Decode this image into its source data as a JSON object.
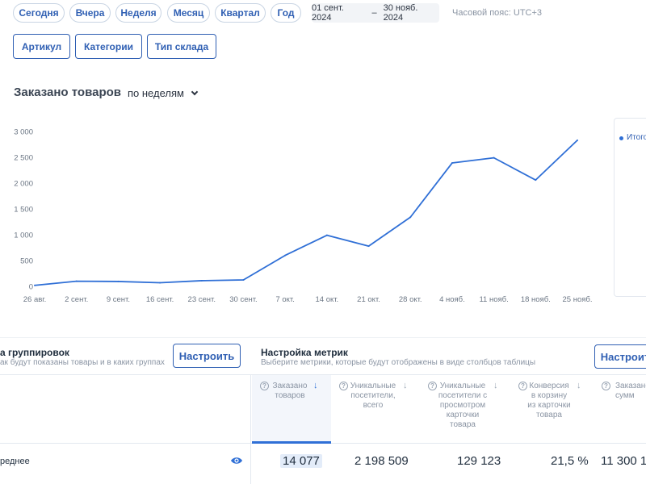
{
  "periods": [
    "Сегодня",
    "Вчера",
    "Неделя",
    "Месяц",
    "Квартал",
    "Год"
  ],
  "date_range": {
    "from": "01 сент. 2024",
    "dash": "–",
    "to": "30 нояб. 2024"
  },
  "timezone": "Часовой пояс: UTC+3",
  "filters": [
    "Артикул",
    "Категории",
    "Тип склада"
  ],
  "chart_header": {
    "title": "Заказано товаров",
    "period_select": "по неделям"
  },
  "legend": {
    "label": "Итого"
  },
  "chart_data": {
    "type": "line",
    "categories": [
      "26 авг.",
      "2 сент.",
      "9 сент.",
      "16 сент.",
      "23 сент.",
      "30 сент.",
      "7 окт.",
      "14 окт.",
      "21 окт.",
      "28 окт.",
      "4 нояб.",
      "11 нояб.",
      "18 нояб.",
      "25 нояб."
    ],
    "series": [
      {
        "name": "Итого",
        "values": [
          20,
          100,
          95,
          70,
          110,
          125,
          600,
          990,
          780,
          1340,
          2390,
          2490,
          2060,
          2830
        ]
      }
    ],
    "yticks": [
      "0",
      "500",
      "1 000",
      "1 500",
      "2 000",
      "2 500",
      "3 000"
    ],
    "ylim": [
      0,
      3000
    ],
    "grid": false,
    "legend_position": "right",
    "line_color": "#2f6fd6"
  },
  "grouping": {
    "title": "а группировок",
    "subtitle": "ак будут показаны товары и в каких группах",
    "button": "Настроить"
  },
  "metrics": {
    "title": "Настройка метрик",
    "subtitle": "Выберите метрики, которые будут отображены в виде столбцов таблицы",
    "button": "Настроить"
  },
  "table": {
    "columns": [
      {
        "label": "Заказано товаров",
        "value": "14 077",
        "sorted": true
      },
      {
        "label": "Уникальные посетители, всего",
        "value": "2 198 509",
        "sorted": false
      },
      {
        "label": "Уникальные посетители с просмотром карточки товара",
        "value": "129 123",
        "sorted": false
      },
      {
        "label": "Конверсия в корзину из карточки товара",
        "value": "21,5 %",
        "sorted": false
      },
      {
        "label": "Заказано на сумм",
        "value": "11 300 1",
        "sorted": false
      }
    ],
    "row_label": "реднее"
  }
}
